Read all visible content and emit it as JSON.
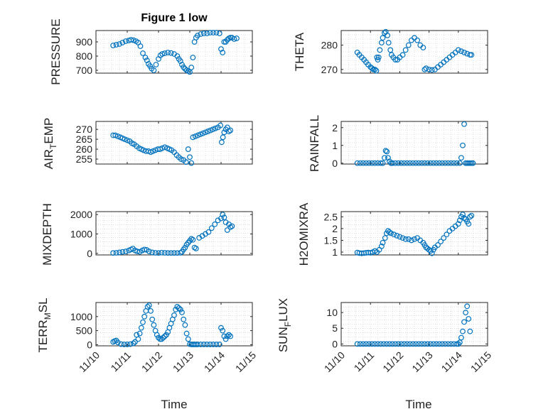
{
  "figure": {
    "title": "Figure 1 low"
  },
  "colors": {
    "marker": "#0072BD",
    "axis": "#262626",
    "grid": "#c8c8c8"
  },
  "chart_data": [
    {
      "type": "scatter",
      "ylabel": "PRESSURE",
      "xlim": [
        0,
        5
      ],
      "ylim": [
        680,
        980
      ],
      "xtick_labels": [
        "11/10",
        "11/11",
        "11/12",
        "11/13",
        "11/14",
        "11/15"
      ],
      "yticks": [
        700,
        800,
        900
      ],
      "grid": true,
      "x": [
        0.55,
        0.65,
        0.75,
        0.85,
        0.95,
        1.05,
        1.12,
        1.2,
        1.28,
        1.35,
        1.42,
        1.5,
        1.58,
        1.63,
        1.68,
        1.73,
        1.78,
        1.85,
        1.92,
        2.0,
        2.06,
        2.12,
        2.2,
        2.3,
        2.4,
        2.5,
        2.6,
        2.65,
        2.7,
        2.75,
        2.8,
        2.85,
        2.9,
        2.95,
        3.0,
        3.05,
        3.1,
        3.15,
        3.2,
        3.25,
        3.35,
        3.45,
        3.55,
        3.65,
        3.75,
        3.85,
        3.95,
        4.0,
        4.05,
        4.1,
        4.15,
        4.2,
        4.25,
        4.3,
        4.35,
        4.42,
        4.5
      ],
      "y": [
        875,
        880,
        885,
        895,
        905,
        910,
        915,
        912,
        905,
        895,
        870,
        820,
        790,
        770,
        745,
        730,
        712,
        700,
        740,
        780,
        805,
        815,
        820,
        825,
        822,
        815,
        800,
        780,
        765,
        740,
        722,
        710,
        700,
        695,
        688,
        720,
        790,
        900,
        930,
        945,
        955,
        960,
        960,
        965,
        965,
        965,
        960,
        850,
        825,
        900,
        900,
        915,
        925,
        930,
        930,
        920,
        925
      ]
    },
    {
      "type": "scatter",
      "ylabel": "THETA",
      "xlim": [
        0,
        5
      ],
      "ylim": [
        268.5,
        286
      ],
      "xtick_labels": [
        "11/10",
        "11/11",
        "11/12",
        "11/13",
        "11/14",
        "11/15"
      ],
      "yticks": [
        270,
        280
      ],
      "grid": true,
      "x": [
        0.55,
        0.62,
        0.7,
        0.78,
        0.85,
        0.92,
        1.0,
        1.05,
        1.1,
        1.15,
        1.2,
        1.22,
        1.25,
        1.28,
        1.32,
        1.38,
        1.42,
        1.48,
        1.52,
        1.58,
        1.62,
        1.68,
        1.72,
        1.78,
        1.85,
        1.92,
        2.0,
        2.1,
        2.2,
        2.3,
        2.4,
        2.5,
        2.6,
        2.7,
        2.8,
        2.85,
        2.9,
        3.0,
        3.1,
        3.2,
        3.3,
        3.4,
        3.5,
        3.6,
        3.7,
        3.8,
        3.9,
        4.0,
        4.1,
        4.2,
        4.3,
        4.4,
        4.45
      ],
      "y": [
        277,
        276,
        275,
        274,
        273,
        272,
        271,
        270.5,
        270,
        270,
        269.5,
        275,
        274,
        275,
        278,
        281,
        283,
        285,
        285.5,
        284,
        281,
        278,
        276,
        275,
        274,
        274,
        275,
        276,
        278,
        280,
        282,
        283,
        282,
        280,
        279,
        270,
        270.5,
        270,
        269.8,
        270,
        271,
        272,
        273,
        274,
        275,
        276,
        277,
        278,
        277.5,
        277,
        276.5,
        276,
        276
      ]
    },
    {
      "type": "scatter",
      "ylabel": "AIR_TEMP",
      "xlim": [
        0,
        5
      ],
      "ylim": [
        252.5,
        274
      ],
      "xtick_labels": [
        "11/10",
        "11/11",
        "11/12",
        "11/13",
        "11/14",
        "11/15"
      ],
      "yticks": [
        255,
        260,
        265,
        270
      ],
      "grid": true,
      "x": [
        0.55,
        0.62,
        0.7,
        0.78,
        0.85,
        0.92,
        1.0,
        1.08,
        1.15,
        1.22,
        1.3,
        1.38,
        1.45,
        1.52,
        1.6,
        1.68,
        1.75,
        1.82,
        1.9,
        1.98,
        2.05,
        2.12,
        2.2,
        2.28,
        2.35,
        2.42,
        2.5,
        2.58,
        2.65,
        2.72,
        2.8,
        2.88,
        2.95,
        3.0,
        3.05,
        3.1,
        3.18,
        3.26,
        3.34,
        3.42,
        3.5,
        3.58,
        3.66,
        3.74,
        3.82,
        3.9,
        3.98,
        4.02,
        4.06,
        4.1,
        4.15,
        4.2,
        4.25,
        4.3
      ],
      "y": [
        267,
        267,
        266.5,
        266,
        265.5,
        265,
        264.5,
        264,
        263,
        262.5,
        261.5,
        260.5,
        260,
        259.5,
        259,
        259,
        258.5,
        259,
        259.5,
        260,
        260,
        260.5,
        261,
        260.5,
        260,
        259.5,
        258.5,
        257,
        256,
        255,
        254.5,
        253.5,
        260,
        256,
        253,
        266,
        266.5,
        267,
        267.5,
        268,
        268.5,
        269,
        269.5,
        270,
        270.5,
        271,
        272,
        263.5,
        266,
        268.5,
        270,
        271,
        269,
        269.5
      ]
    },
    {
      "type": "scatter",
      "ylabel": "RAINFALL",
      "xlim": [
        0,
        5
      ],
      "ylim": [
        -0.05,
        2.35
      ],
      "xtick_labels": [
        "11/10",
        "11/11",
        "11/12",
        "11/13",
        "11/14",
        "11/15"
      ],
      "yticks": [
        0,
        1,
        2
      ],
      "grid": true,
      "x": [
        0.55,
        0.65,
        0.75,
        0.85,
        0.95,
        1.05,
        1.15,
        1.25,
        1.35,
        1.42,
        1.48,
        1.52,
        1.56,
        1.6,
        1.65,
        1.7,
        1.75,
        1.85,
        1.95,
        2.05,
        2.15,
        2.25,
        2.35,
        2.45,
        2.55,
        2.65,
        2.75,
        2.85,
        2.95,
        3.05,
        3.15,
        3.25,
        3.35,
        3.45,
        3.55,
        3.65,
        3.75,
        3.85,
        3.95,
        4.05,
        4.1,
        4.15,
        4.2,
        4.25,
        4.3,
        4.35,
        4.4,
        4.45,
        4.5
      ],
      "y": [
        0,
        0,
        0,
        0,
        0,
        0,
        0,
        0,
        0,
        0,
        0.3,
        0.7,
        0.65,
        0.3,
        0.1,
        0,
        0,
        0,
        0,
        0,
        0,
        0,
        0,
        0,
        0,
        0,
        0,
        0,
        0,
        0,
        0,
        0,
        0,
        0,
        0,
        0,
        0,
        0,
        0,
        0,
        0.3,
        1.0,
        2.2,
        0,
        0,
        0,
        0,
        0,
        0
      ]
    },
    {
      "type": "scatter",
      "ylabel": "MIXDEPTH",
      "xlim": [
        0,
        5
      ],
      "ylim": [
        -80,
        2150
      ],
      "xtick_labels": [
        "11/10",
        "11/11",
        "11/12",
        "11/13",
        "11/14",
        "11/15"
      ],
      "yticks": [
        0,
        1000,
        2000
      ],
      "grid": true,
      "x": [
        0.55,
        0.65,
        0.75,
        0.85,
        0.95,
        1.05,
        1.12,
        1.18,
        1.25,
        1.32,
        1.4,
        1.48,
        1.55,
        1.62,
        1.7,
        1.8,
        1.9,
        2.0,
        2.1,
        2.2,
        2.3,
        2.4,
        2.5,
        2.6,
        2.7,
        2.75,
        2.8,
        2.85,
        2.9,
        2.95,
        3.0,
        3.05,
        3.1,
        3.15,
        3.2,
        3.3,
        3.4,
        3.5,
        3.6,
        3.7,
        3.8,
        3.9,
        4.0,
        4.05,
        4.1,
        4.15,
        4.2,
        4.25,
        4.3,
        4.35
      ],
      "y": [
        20,
        30,
        50,
        80,
        100,
        150,
        200,
        250,
        150,
        100,
        80,
        150,
        200,
        180,
        100,
        50,
        30,
        20,
        40,
        30,
        20,
        20,
        20,
        20,
        30,
        80,
        200,
        300,
        450,
        550,
        650,
        750,
        700,
        300,
        250,
        800,
        900,
        1000,
        1100,
        1300,
        1500,
        1700,
        1800,
        2000,
        1850,
        1600,
        1200,
        1500,
        1350,
        1400
      ]
    },
    {
      "type": "scatter",
      "ylabel": "H2OMIXRA",
      "xlim": [
        0,
        5
      ],
      "ylim": [
        0.88,
        2.72
      ],
      "xtick_labels": [
        "11/10",
        "11/11",
        "11/12",
        "11/13",
        "11/14",
        "11/15"
      ],
      "yticks": [
        1,
        1.5,
        2,
        2.5
      ],
      "grid": true,
      "x": [
        0.55,
        0.62,
        0.7,
        0.78,
        0.85,
        0.92,
        1.0,
        1.08,
        1.15,
        1.22,
        1.3,
        1.38,
        1.42,
        1.5,
        1.55,
        1.6,
        1.65,
        1.7,
        1.8,
        1.9,
        2.0,
        2.1,
        2.2,
        2.3,
        2.4,
        2.5,
        2.6,
        2.7,
        2.8,
        2.85,
        2.9,
        2.95,
        3.0,
        3.05,
        3.1,
        3.15,
        3.2,
        3.3,
        3.4,
        3.5,
        3.6,
        3.7,
        3.8,
        3.9,
        4.0,
        4.05,
        4.1,
        4.15,
        4.2,
        4.25,
        4.3,
        4.35,
        4.4,
        4.45
      ],
      "y": [
        0.98,
        0.96,
        0.95,
        0.96,
        0.97,
        0.98,
        0.97,
        1.0,
        1.05,
        1.0,
        1.1,
        1.25,
        1.4,
        1.6,
        1.8,
        1.9,
        1.85,
        1.8,
        1.75,
        1.7,
        1.65,
        1.6,
        1.55,
        1.55,
        1.5,
        1.55,
        1.6,
        1.5,
        1.4,
        1.3,
        1.2,
        1.15,
        1.1,
        1.05,
        0.95,
        1.1,
        1.2,
        1.3,
        1.45,
        1.6,
        1.75,
        1.9,
        2.0,
        2.1,
        2.2,
        2.35,
        2.5,
        2.6,
        2.45,
        2.4,
        2.3,
        2.2,
        2.5,
        2.55
      ]
    },
    {
      "type": "scatter",
      "ylabel": "TERR_MSL",
      "xlim": [
        0,
        5
      ],
      "ylim": [
        -40,
        1500
      ],
      "xtick_labels": [
        "11/10",
        "11/11",
        "11/12",
        "11/13",
        "11/14",
        "11/15"
      ],
      "yticks": [
        0,
        500,
        1000
      ],
      "grid": true,
      "x": [
        0.55,
        0.6,
        0.65,
        0.7,
        0.8,
        0.9,
        1.0,
        1.1,
        1.2,
        1.25,
        1.3,
        1.35,
        1.4,
        1.45,
        1.5,
        1.55,
        1.6,
        1.65,
        1.7,
        1.75,
        1.8,
        1.85,
        1.9,
        1.95,
        2.0,
        2.05,
        2.1,
        2.15,
        2.2,
        2.25,
        2.3,
        2.35,
        2.4,
        2.45,
        2.5,
        2.55,
        2.6,
        2.65,
        2.7,
        2.75,
        2.8,
        2.85,
        2.9,
        2.95,
        3.0,
        3.05,
        3.1,
        3.15,
        3.2,
        3.25,
        3.35,
        3.45,
        3.55,
        3.65,
        3.75,
        3.85,
        3.95,
        4.0,
        4.05,
        4.1,
        4.15,
        4.2,
        4.25,
        4.3
      ],
      "y": [
        100,
        130,
        150,
        80,
        20,
        10,
        10,
        20,
        50,
        100,
        350,
        200,
        400,
        600,
        800,
        1000,
        1200,
        1350,
        1400,
        1200,
        900,
        700,
        500,
        350,
        250,
        200,
        200,
        250,
        300,
        350,
        450,
        600,
        750,
        900,
        1050,
        1250,
        1350,
        1300,
        1250,
        1150,
        900,
        700,
        400,
        200,
        20,
        10,
        10,
        10,
        10,
        10,
        10,
        10,
        10,
        10,
        10,
        10,
        10,
        600,
        500,
        300,
        200,
        300,
        350,
        300
      ]
    },
    {
      "type": "scatter",
      "ylabel": "SUN_FLUX",
      "xlim": [
        0,
        5
      ],
      "ylim": [
        -0.6,
        13.2
      ],
      "xtick_labels": [
        "11/10",
        "11/11",
        "11/12",
        "11/13",
        "11/14",
        "11/15"
      ],
      "yticks": [
        0,
        5,
        10
      ],
      "grid": true,
      "x": [
        0.55,
        0.65,
        0.75,
        0.85,
        0.95,
        1.05,
        1.15,
        1.25,
        1.35,
        1.45,
        1.55,
        1.65,
        1.75,
        1.85,
        1.95,
        2.05,
        2.15,
        2.25,
        2.35,
        2.45,
        2.55,
        2.65,
        2.75,
        2.85,
        2.95,
        3.05,
        3.15,
        3.25,
        3.35,
        3.45,
        3.55,
        3.65,
        3.75,
        3.85,
        3.95,
        4.0,
        4.05,
        4.1,
        4.15,
        4.2,
        4.25,
        4.3,
        4.35,
        4.4
      ],
      "y": [
        0,
        0,
        0,
        0,
        0,
        0,
        0,
        0,
        0,
        0,
        0,
        0,
        0,
        0,
        0,
        0,
        0,
        0,
        0,
        0,
        0,
        0,
        0,
        0,
        0,
        0,
        0,
        0,
        0,
        0,
        0,
        0,
        0,
        0,
        0,
        0,
        0.5,
        2,
        4,
        7,
        10,
        12,
        8,
        4
      ]
    }
  ],
  "xlabel": "Time",
  "ylabel_display": {
    "air_temp": {
      "main": "AIR",
      "sub": "T",
      "rest": "EMP"
    },
    "terr_msl": {
      "main": "TERR",
      "sub": "M",
      "rest": "SL"
    },
    "sun_flux": {
      "main": "SUN",
      "sub": "F",
      "rest": "LUX"
    }
  }
}
